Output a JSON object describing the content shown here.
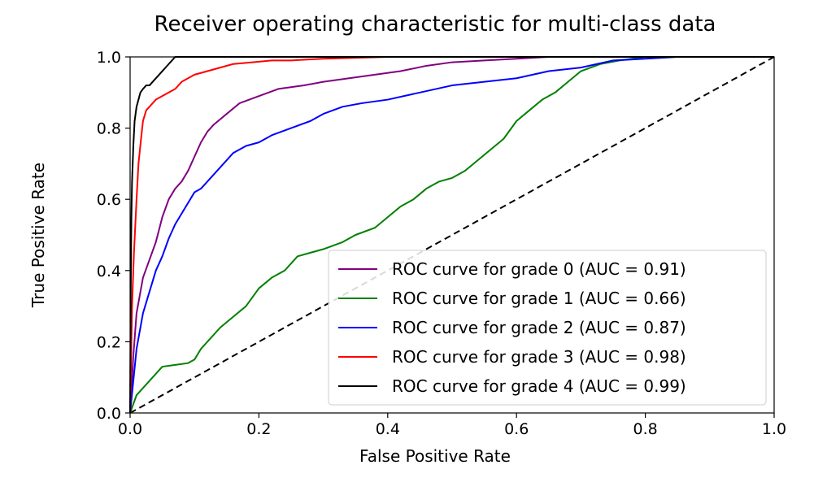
{
  "chart_data": {
    "type": "line",
    "title": "Receiver operating characteristic for multi-class data",
    "xlabel": "False Positive Rate",
    "ylabel": "True Positive Rate",
    "xlim": [
      0.0,
      1.0
    ],
    "ylim": [
      0.0,
      1.0
    ],
    "xticks": [
      "0.0",
      "0.2",
      "0.4",
      "0.6",
      "0.8",
      "1.0"
    ],
    "yticks": [
      "0.0",
      "0.2",
      "0.4",
      "0.6",
      "0.8",
      "1.0"
    ],
    "grid": false,
    "legend_position": "lower-right",
    "series": [
      {
        "name": "ROC curve for grade 0 (AUC = 0.91)",
        "color": "#800080",
        "x": [
          0,
          0.005,
          0.01,
          0.015,
          0.02,
          0.03,
          0.04,
          0.05,
          0.06,
          0.07,
          0.08,
          0.09,
          0.1,
          0.11,
          0.12,
          0.13,
          0.15,
          0.17,
          0.2,
          0.23,
          0.27,
          0.3,
          0.34,
          0.38,
          0.42,
          0.46,
          0.5,
          0.55,
          0.6,
          0.65,
          0.7,
          0.8,
          0.9,
          1.0
        ],
        "y": [
          0,
          0.16,
          0.28,
          0.33,
          0.38,
          0.43,
          0.48,
          0.55,
          0.6,
          0.63,
          0.65,
          0.68,
          0.72,
          0.76,
          0.79,
          0.81,
          0.84,
          0.87,
          0.89,
          0.91,
          0.92,
          0.93,
          0.94,
          0.95,
          0.96,
          0.975,
          0.985,
          0.99,
          0.995,
          1.0,
          1.0,
          1.0,
          1.0,
          1.0
        ]
      },
      {
        "name": "ROC curve for grade 1 (AUC = 0.66)",
        "color": "#008000",
        "x": [
          0,
          0.01,
          0.02,
          0.03,
          0.05,
          0.07,
          0.09,
          0.1,
          0.11,
          0.12,
          0.14,
          0.16,
          0.18,
          0.2,
          0.22,
          0.24,
          0.26,
          0.28,
          0.3,
          0.33,
          0.35,
          0.38,
          0.4,
          0.42,
          0.44,
          0.46,
          0.48,
          0.5,
          0.52,
          0.54,
          0.56,
          0.58,
          0.6,
          0.62,
          0.64,
          0.66,
          0.68,
          0.7,
          0.73,
          0.76,
          0.8,
          0.9,
          1.0
        ],
        "y": [
          0,
          0.05,
          0.07,
          0.09,
          0.13,
          0.135,
          0.14,
          0.15,
          0.18,
          0.2,
          0.24,
          0.27,
          0.3,
          0.35,
          0.38,
          0.4,
          0.44,
          0.45,
          0.46,
          0.48,
          0.5,
          0.52,
          0.55,
          0.58,
          0.6,
          0.63,
          0.65,
          0.66,
          0.68,
          0.71,
          0.74,
          0.77,
          0.82,
          0.85,
          0.88,
          0.9,
          0.93,
          0.96,
          0.98,
          0.99,
          1.0,
          1.0,
          1.0
        ]
      },
      {
        "name": "ROC curve for grade 2 (AUC = 0.87)",
        "color": "#0000FF",
        "x": [
          0,
          0.01,
          0.015,
          0.02,
          0.03,
          0.04,
          0.05,
          0.06,
          0.07,
          0.08,
          0.09,
          0.1,
          0.11,
          0.12,
          0.13,
          0.14,
          0.15,
          0.16,
          0.18,
          0.2,
          0.22,
          0.25,
          0.28,
          0.3,
          0.33,
          0.36,
          0.4,
          0.45,
          0.5,
          0.55,
          0.6,
          0.65,
          0.7,
          0.75,
          0.8,
          0.85,
          0.9,
          1.0
        ],
        "y": [
          0,
          0.18,
          0.23,
          0.28,
          0.34,
          0.4,
          0.44,
          0.49,
          0.53,
          0.56,
          0.59,
          0.62,
          0.63,
          0.65,
          0.67,
          0.69,
          0.71,
          0.73,
          0.75,
          0.76,
          0.78,
          0.8,
          0.82,
          0.84,
          0.86,
          0.87,
          0.88,
          0.9,
          0.92,
          0.93,
          0.94,
          0.96,
          0.97,
          0.99,
          0.995,
          1.0,
          1.0,
          1.0
        ]
      },
      {
        "name": "ROC curve for grade 3 (AUC = 0.98)",
        "color": "#FF0000",
        "x": [
          0,
          0.003,
          0.006,
          0.01,
          0.013,
          0.017,
          0.02,
          0.025,
          0.03,
          0.035,
          0.04,
          0.05,
          0.06,
          0.07,
          0.08,
          0.09,
          0.1,
          0.12,
          0.14,
          0.16,
          0.19,
          0.22,
          0.25,
          0.3,
          0.4,
          0.5,
          0.6,
          0.7,
          0.8,
          0.9,
          1.0
        ],
        "y": [
          0,
          0.3,
          0.45,
          0.6,
          0.7,
          0.77,
          0.82,
          0.85,
          0.86,
          0.87,
          0.88,
          0.89,
          0.9,
          0.91,
          0.93,
          0.94,
          0.95,
          0.96,
          0.97,
          0.98,
          0.985,
          0.99,
          0.99,
          0.995,
          1.0,
          1.0,
          1.0,
          1.0,
          1.0,
          1.0,
          1.0
        ]
      },
      {
        "name": "ROC curve for grade 4 (AUC = 0.99)",
        "color": "#000000",
        "x": [
          0,
          0.001,
          0.002,
          0.003,
          0.005,
          0.007,
          0.01,
          0.013,
          0.016,
          0.02,
          0.025,
          0.03,
          0.035,
          0.04,
          0.045,
          0.05,
          0.055,
          0.06,
          0.065,
          0.07,
          0.1,
          0.2,
          0.4,
          0.6,
          0.8,
          1.0
        ],
        "y": [
          0,
          0.35,
          0.55,
          0.65,
          0.75,
          0.82,
          0.86,
          0.88,
          0.9,
          0.91,
          0.92,
          0.92,
          0.93,
          0.94,
          0.95,
          0.96,
          0.97,
          0.98,
          0.99,
          1.0,
          1.0,
          1.0,
          1.0,
          1.0,
          1.0,
          1.0
        ]
      },
      {
        "name": "",
        "color": "#000000",
        "dashed": true,
        "x": [
          0,
          1
        ],
        "y": [
          0,
          1
        ]
      }
    ]
  }
}
